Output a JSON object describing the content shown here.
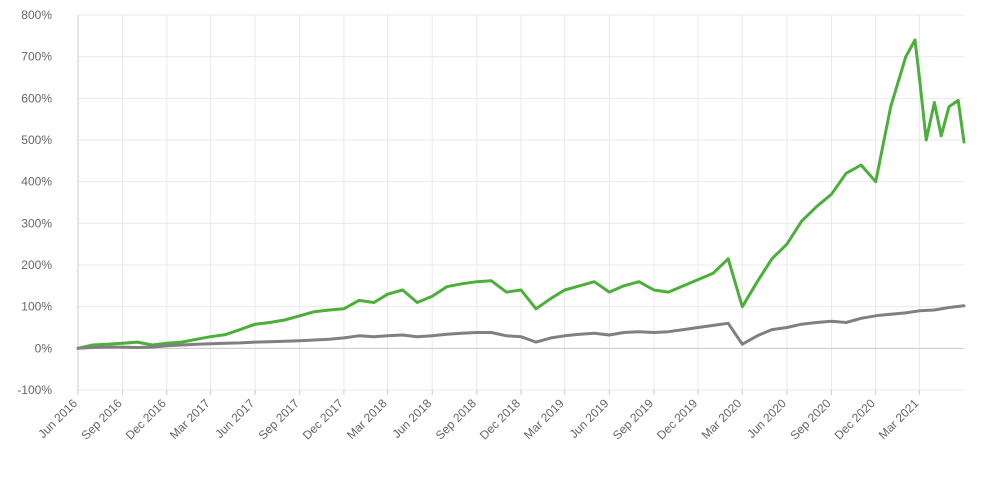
{
  "chart_data": {
    "type": "line",
    "title": "",
    "xlabel": "",
    "ylabel": "",
    "grid": true,
    "legend": "none",
    "xlim": [
      "2016-06-01",
      "2021-06-01"
    ],
    "ylim": [
      -100,
      800
    ],
    "y_unit": "%",
    "yticks": [
      {
        "value": -100,
        "label": "-100%"
      },
      {
        "value": 0,
        "label": "0%"
      },
      {
        "value": 100,
        "label": "100%"
      },
      {
        "value": 200,
        "label": "200%"
      },
      {
        "value": 300,
        "label": "300%"
      },
      {
        "value": 400,
        "label": "400%"
      },
      {
        "value": 500,
        "label": "500%"
      },
      {
        "value": 600,
        "label": "600%"
      },
      {
        "value": 700,
        "label": "700%"
      },
      {
        "value": 800,
        "label": "800%"
      }
    ],
    "xticks": [
      {
        "date": "2016-06-01",
        "label": "Jun 2016"
      },
      {
        "date": "2016-09-01",
        "label": "Sep 2016"
      },
      {
        "date": "2016-12-01",
        "label": "Dec 2016"
      },
      {
        "date": "2017-03-01",
        "label": "Mar 2017"
      },
      {
        "date": "2017-06-01",
        "label": "Jun 2017"
      },
      {
        "date": "2017-09-01",
        "label": "Sep 2017"
      },
      {
        "date": "2017-12-01",
        "label": "Dec 2017"
      },
      {
        "date": "2018-03-01",
        "label": "Mar 2018"
      },
      {
        "date": "2018-06-01",
        "label": "Jun 2018"
      },
      {
        "date": "2018-09-01",
        "label": "Sep 2018"
      },
      {
        "date": "2018-12-01",
        "label": "Dec 2018"
      },
      {
        "date": "2019-03-01",
        "label": "Mar 2019"
      },
      {
        "date": "2019-06-01",
        "label": "Jun 2019"
      },
      {
        "date": "2019-09-01",
        "label": "Sep 2019"
      },
      {
        "date": "2019-12-01",
        "label": "Dec 2019"
      },
      {
        "date": "2020-03-01",
        "label": "Mar 2020"
      },
      {
        "date": "2020-06-01",
        "label": "Jun 2020"
      },
      {
        "date": "2020-09-01",
        "label": "Sep 2020"
      },
      {
        "date": "2020-12-01",
        "label": "Dec 2020"
      },
      {
        "date": "2021-03-01",
        "label": "Mar 2021"
      }
    ],
    "series": [
      {
        "color": "#4caf3a",
        "points": [
          [
            "2016-06-01",
            0
          ],
          [
            "2016-07-01",
            8
          ],
          [
            "2016-08-01",
            10
          ],
          [
            "2016-09-01",
            12
          ],
          [
            "2016-10-01",
            15
          ],
          [
            "2016-11-01",
            8
          ],
          [
            "2016-12-01",
            12
          ],
          [
            "2017-01-01",
            15
          ],
          [
            "2017-02-01",
            22
          ],
          [
            "2017-03-01",
            28
          ],
          [
            "2017-04-01",
            33
          ],
          [
            "2017-05-01",
            45
          ],
          [
            "2017-06-01",
            58
          ],
          [
            "2017-07-01",
            62
          ],
          [
            "2017-08-01",
            68
          ],
          [
            "2017-09-01",
            78
          ],
          [
            "2017-10-01",
            88
          ],
          [
            "2017-11-01",
            92
          ],
          [
            "2017-12-01",
            95
          ],
          [
            "2018-01-01",
            115
          ],
          [
            "2018-02-01",
            110
          ],
          [
            "2018-03-01",
            130
          ],
          [
            "2018-04-01",
            140
          ],
          [
            "2018-05-01",
            110
          ],
          [
            "2018-06-01",
            125
          ],
          [
            "2018-07-01",
            148
          ],
          [
            "2018-08-01",
            155
          ],
          [
            "2018-09-01",
            160
          ],
          [
            "2018-10-01",
            162
          ],
          [
            "2018-11-01",
            135
          ],
          [
            "2018-12-01",
            140
          ],
          [
            "2019-01-01",
            95
          ],
          [
            "2019-02-01",
            120
          ],
          [
            "2019-03-01",
            140
          ],
          [
            "2019-04-01",
            150
          ],
          [
            "2019-05-01",
            160
          ],
          [
            "2019-06-01",
            135
          ],
          [
            "2019-07-01",
            150
          ],
          [
            "2019-08-01",
            160
          ],
          [
            "2019-09-01",
            140
          ],
          [
            "2019-10-01",
            135
          ],
          [
            "2019-11-01",
            150
          ],
          [
            "2019-12-01",
            165
          ],
          [
            "2020-01-01",
            180
          ],
          [
            "2020-02-01",
            215
          ],
          [
            "2020-03-01",
            100
          ],
          [
            "2020-04-01",
            160
          ],
          [
            "2020-05-01",
            215
          ],
          [
            "2020-06-01",
            250
          ],
          [
            "2020-07-01",
            305
          ],
          [
            "2020-08-01",
            340
          ],
          [
            "2020-09-01",
            370
          ],
          [
            "2020-10-01",
            420
          ],
          [
            "2020-11-01",
            440
          ],
          [
            "2020-12-01",
            400
          ],
          [
            "2021-01-01",
            580
          ],
          [
            "2021-02-01",
            700
          ],
          [
            "2021-02-20",
            740
          ],
          [
            "2021-03-01",
            650
          ],
          [
            "2021-03-15",
            500
          ],
          [
            "2021-04-01",
            590
          ],
          [
            "2021-04-15",
            510
          ],
          [
            "2021-05-01",
            580
          ],
          [
            "2021-05-20",
            595
          ],
          [
            "2021-06-01",
            495
          ]
        ]
      },
      {
        "color": "#808080",
        "points": [
          [
            "2016-06-01",
            0
          ],
          [
            "2016-07-01",
            2
          ],
          [
            "2016-08-01",
            3
          ],
          [
            "2016-09-01",
            3
          ],
          [
            "2016-10-01",
            2
          ],
          [
            "2016-11-01",
            3
          ],
          [
            "2016-12-01",
            6
          ],
          [
            "2017-01-01",
            8
          ],
          [
            "2017-02-01",
            10
          ],
          [
            "2017-03-01",
            11
          ],
          [
            "2017-04-01",
            12
          ],
          [
            "2017-05-01",
            13
          ],
          [
            "2017-06-01",
            15
          ],
          [
            "2017-07-01",
            16
          ],
          [
            "2017-08-01",
            17
          ],
          [
            "2017-09-01",
            18
          ],
          [
            "2017-10-01",
            20
          ],
          [
            "2017-11-01",
            22
          ],
          [
            "2017-12-01",
            25
          ],
          [
            "2018-01-01",
            30
          ],
          [
            "2018-02-01",
            28
          ],
          [
            "2018-03-01",
            30
          ],
          [
            "2018-04-01",
            32
          ],
          [
            "2018-05-01",
            28
          ],
          [
            "2018-06-01",
            30
          ],
          [
            "2018-07-01",
            34
          ],
          [
            "2018-08-01",
            36
          ],
          [
            "2018-09-01",
            38
          ],
          [
            "2018-10-01",
            38
          ],
          [
            "2018-11-01",
            30
          ],
          [
            "2018-12-01",
            28
          ],
          [
            "2019-01-01",
            15
          ],
          [
            "2019-02-01",
            25
          ],
          [
            "2019-03-01",
            30
          ],
          [
            "2019-04-01",
            34
          ],
          [
            "2019-05-01",
            36
          ],
          [
            "2019-06-01",
            32
          ],
          [
            "2019-07-01",
            38
          ],
          [
            "2019-08-01",
            40
          ],
          [
            "2019-09-01",
            38
          ],
          [
            "2019-10-01",
            40
          ],
          [
            "2019-11-01",
            45
          ],
          [
            "2019-12-01",
            50
          ],
          [
            "2020-01-01",
            55
          ],
          [
            "2020-02-01",
            60
          ],
          [
            "2020-03-01",
            10
          ],
          [
            "2020-04-01",
            30
          ],
          [
            "2020-05-01",
            45
          ],
          [
            "2020-06-01",
            50
          ],
          [
            "2020-07-01",
            58
          ],
          [
            "2020-08-01",
            62
          ],
          [
            "2020-09-01",
            65
          ],
          [
            "2020-10-01",
            62
          ],
          [
            "2020-11-01",
            72
          ],
          [
            "2020-12-01",
            78
          ],
          [
            "2021-01-01",
            82
          ],
          [
            "2021-02-01",
            85
          ],
          [
            "2021-03-01",
            90
          ],
          [
            "2021-04-01",
            92
          ],
          [
            "2021-05-01",
            98
          ],
          [
            "2021-06-01",
            102
          ]
        ]
      }
    ]
  }
}
